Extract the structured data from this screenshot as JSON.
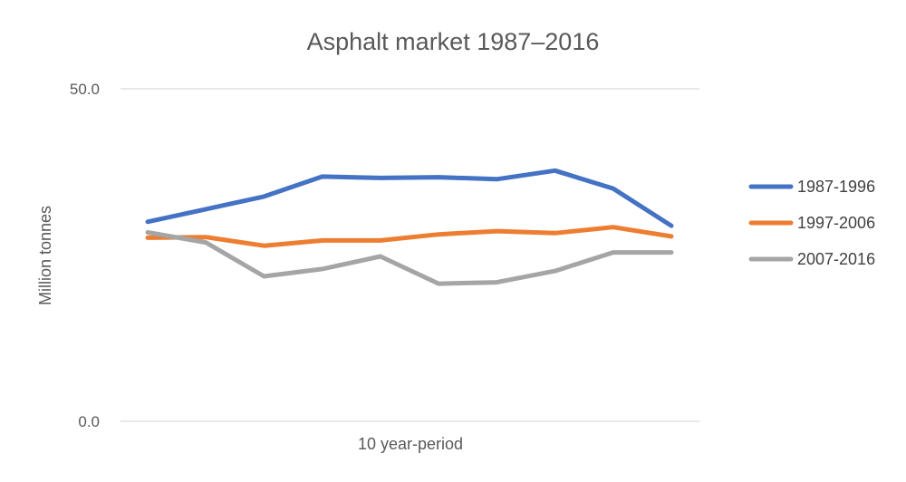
{
  "chart_data": {
    "type": "line",
    "title": "Asphalt market 1987–2016",
    "xlabel": "10 year-period",
    "ylabel": "Million tonnes",
    "ylim": [
      0,
      50
    ],
    "yticks": [
      "0.0",
      "50.0"
    ],
    "x": [
      1,
      2,
      3,
      4,
      5,
      6,
      7,
      8,
      9,
      10
    ],
    "grid": true,
    "legend_position": "right",
    "series": [
      {
        "name": "1987-1996",
        "color": "#4472c4",
        "values": [
          30.0,
          31.9,
          33.8,
          36.8,
          36.6,
          36.7,
          36.4,
          37.7,
          35.0,
          29.4
        ]
      },
      {
        "name": "1997-2006",
        "color": "#ed7d31",
        "values": [
          27.6,
          27.7,
          26.4,
          27.2,
          27.2,
          28.1,
          28.6,
          28.3,
          29.2,
          27.8
        ]
      },
      {
        "name": "2007-2016",
        "color": "#a5a5a5",
        "values": [
          28.4,
          26.9,
          21.8,
          22.9,
          24.8,
          20.7,
          20.9,
          22.6,
          25.4,
          25.4
        ]
      }
    ]
  }
}
